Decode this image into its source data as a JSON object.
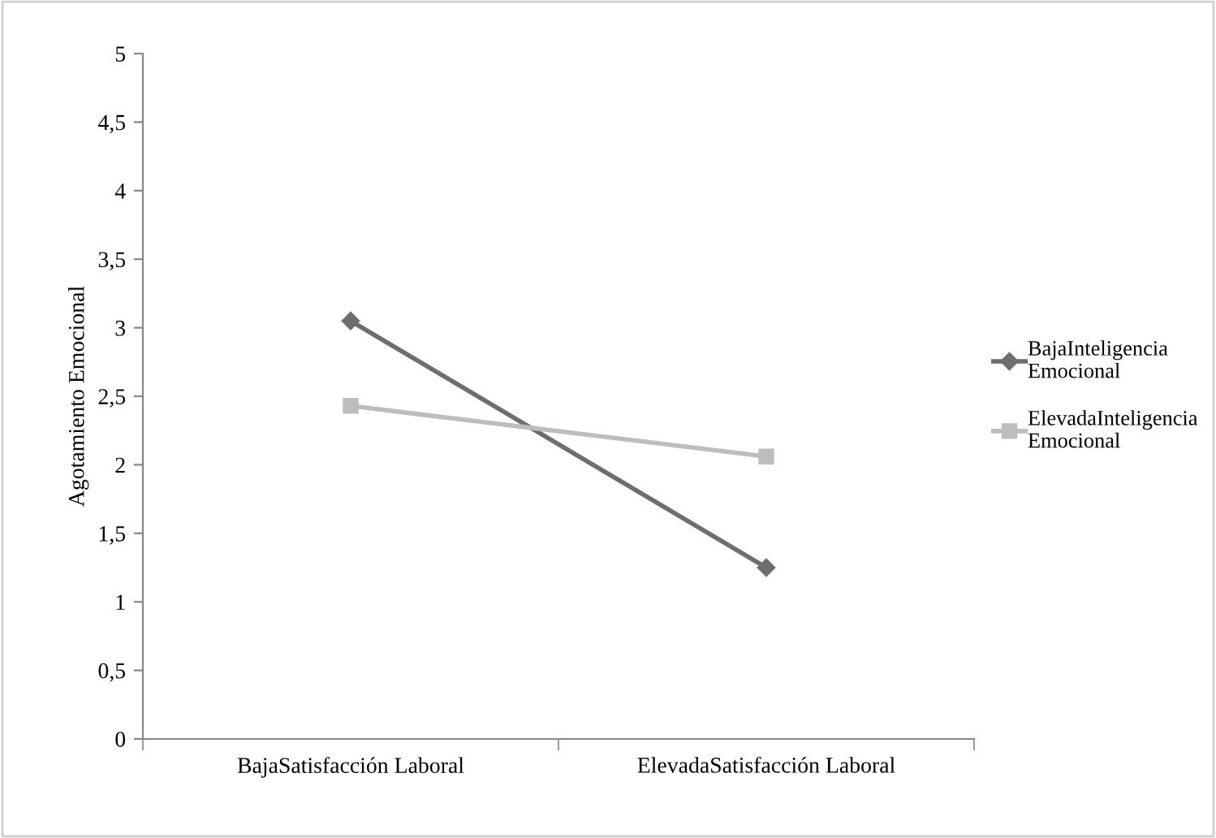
{
  "chart_data": {
    "type": "line",
    "ylabel": "Agotamiento Emocional",
    "categories": [
      "BajaSatisfacción Laboral",
      "ElevadaSatisfacción Laboral"
    ],
    "series": [
      {
        "name": "BajaInteligencia Emocional",
        "color": "#6e6e6e",
        "marker": "diamond",
        "values": [
          3.05,
          1.25
        ]
      },
      {
        "name": "ElevadaInteligencia Emocional",
        "color": "#bdbdbd",
        "marker": "square",
        "values": [
          2.43,
          2.06
        ]
      }
    ],
    "ylim": [
      0,
      5
    ],
    "yticks": [
      {
        "value": 0,
        "label": "0"
      },
      {
        "value": 0.5,
        "label": "0,5"
      },
      {
        "value": 1,
        "label": "1"
      },
      {
        "value": 1.5,
        "label": "1,5"
      },
      {
        "value": 2,
        "label": "2"
      },
      {
        "value": 2.5,
        "label": "2,5"
      },
      {
        "value": 3,
        "label": "3"
      },
      {
        "value": 3.5,
        "label": "3,5"
      },
      {
        "value": 4,
        "label": "4"
      },
      {
        "value": 4.5,
        "label": "4,5"
      },
      {
        "value": 5,
        "label": "5"
      }
    ],
    "grid": false,
    "legend": "right",
    "line_style": "solid"
  }
}
